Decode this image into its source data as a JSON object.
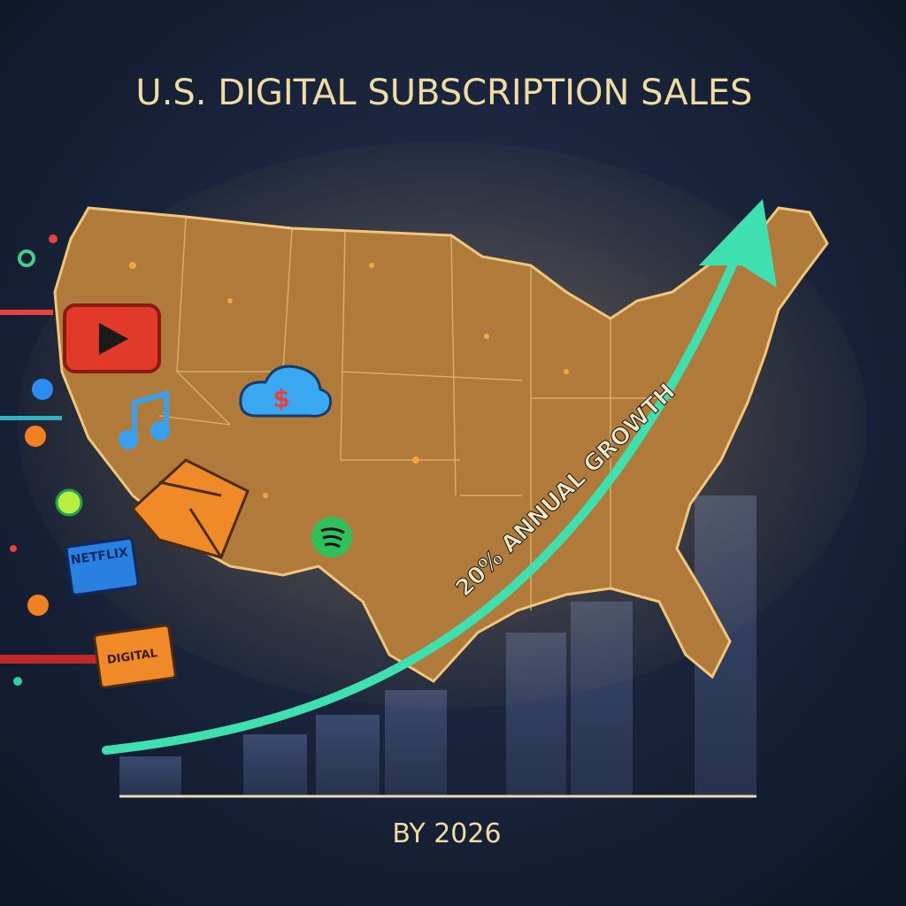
{
  "header": {
    "title": "U.S. DIGITAL SUBSCRIPTION SALES"
  },
  "growth_label": "20% ANNUAL GROWTH",
  "footer": "BY 2026",
  "icons": {
    "news_badge": "NETFLIX",
    "digital_badge": "DIGITAL"
  }
}
